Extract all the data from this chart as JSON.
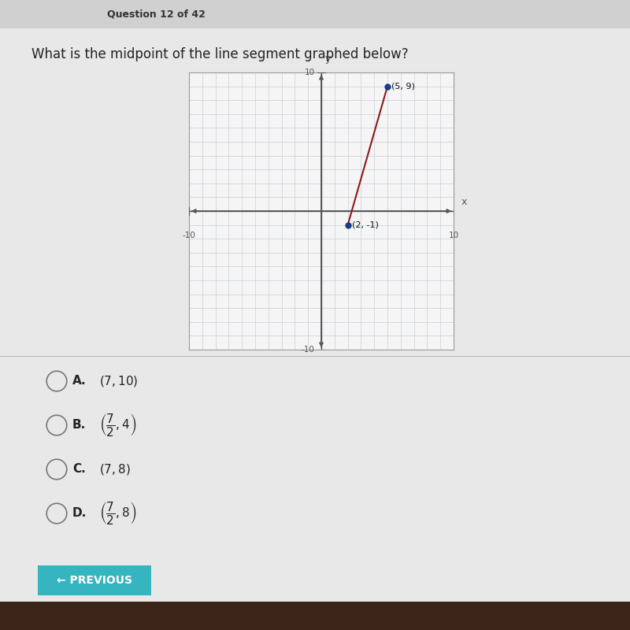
{
  "title": "What is the midpoint of the line segment graphed below?",
  "question_header": "Question 12 of 42",
  "point1": [
    5,
    9
  ],
  "point2": [
    2,
    -1
  ],
  "point1_label": "(5, 9)",
  "point2_label": "(2, -1)",
  "point_color": "#1a3a8a",
  "line_color": "#8B1a1a",
  "xlim": [
    -10,
    10
  ],
  "ylim": [
    -10,
    10
  ],
  "grid_color": "#c8cdd8",
  "axis_color": "#555555",
  "bg_color": "#e8e8e8",
  "graph_bg": "#f5f5f5",
  "graph_border": "#999999",
  "outer_bg": "#d8d8d8",
  "choices_label": [
    "A.",
    "B.",
    "C.",
    "D."
  ],
  "choices_text": [
    "(7, 10)",
    "(7/2, 4)",
    "(7, 8)",
    "(7/2, 8)"
  ],
  "button_color": "#35b5c0",
  "button_text": "← PREVIOUS",
  "laptop_bottom_color": "#3a2518",
  "hp_color": "#888888",
  "header_bar_color": "#d0d0d0",
  "header_text_color": "#333333"
}
